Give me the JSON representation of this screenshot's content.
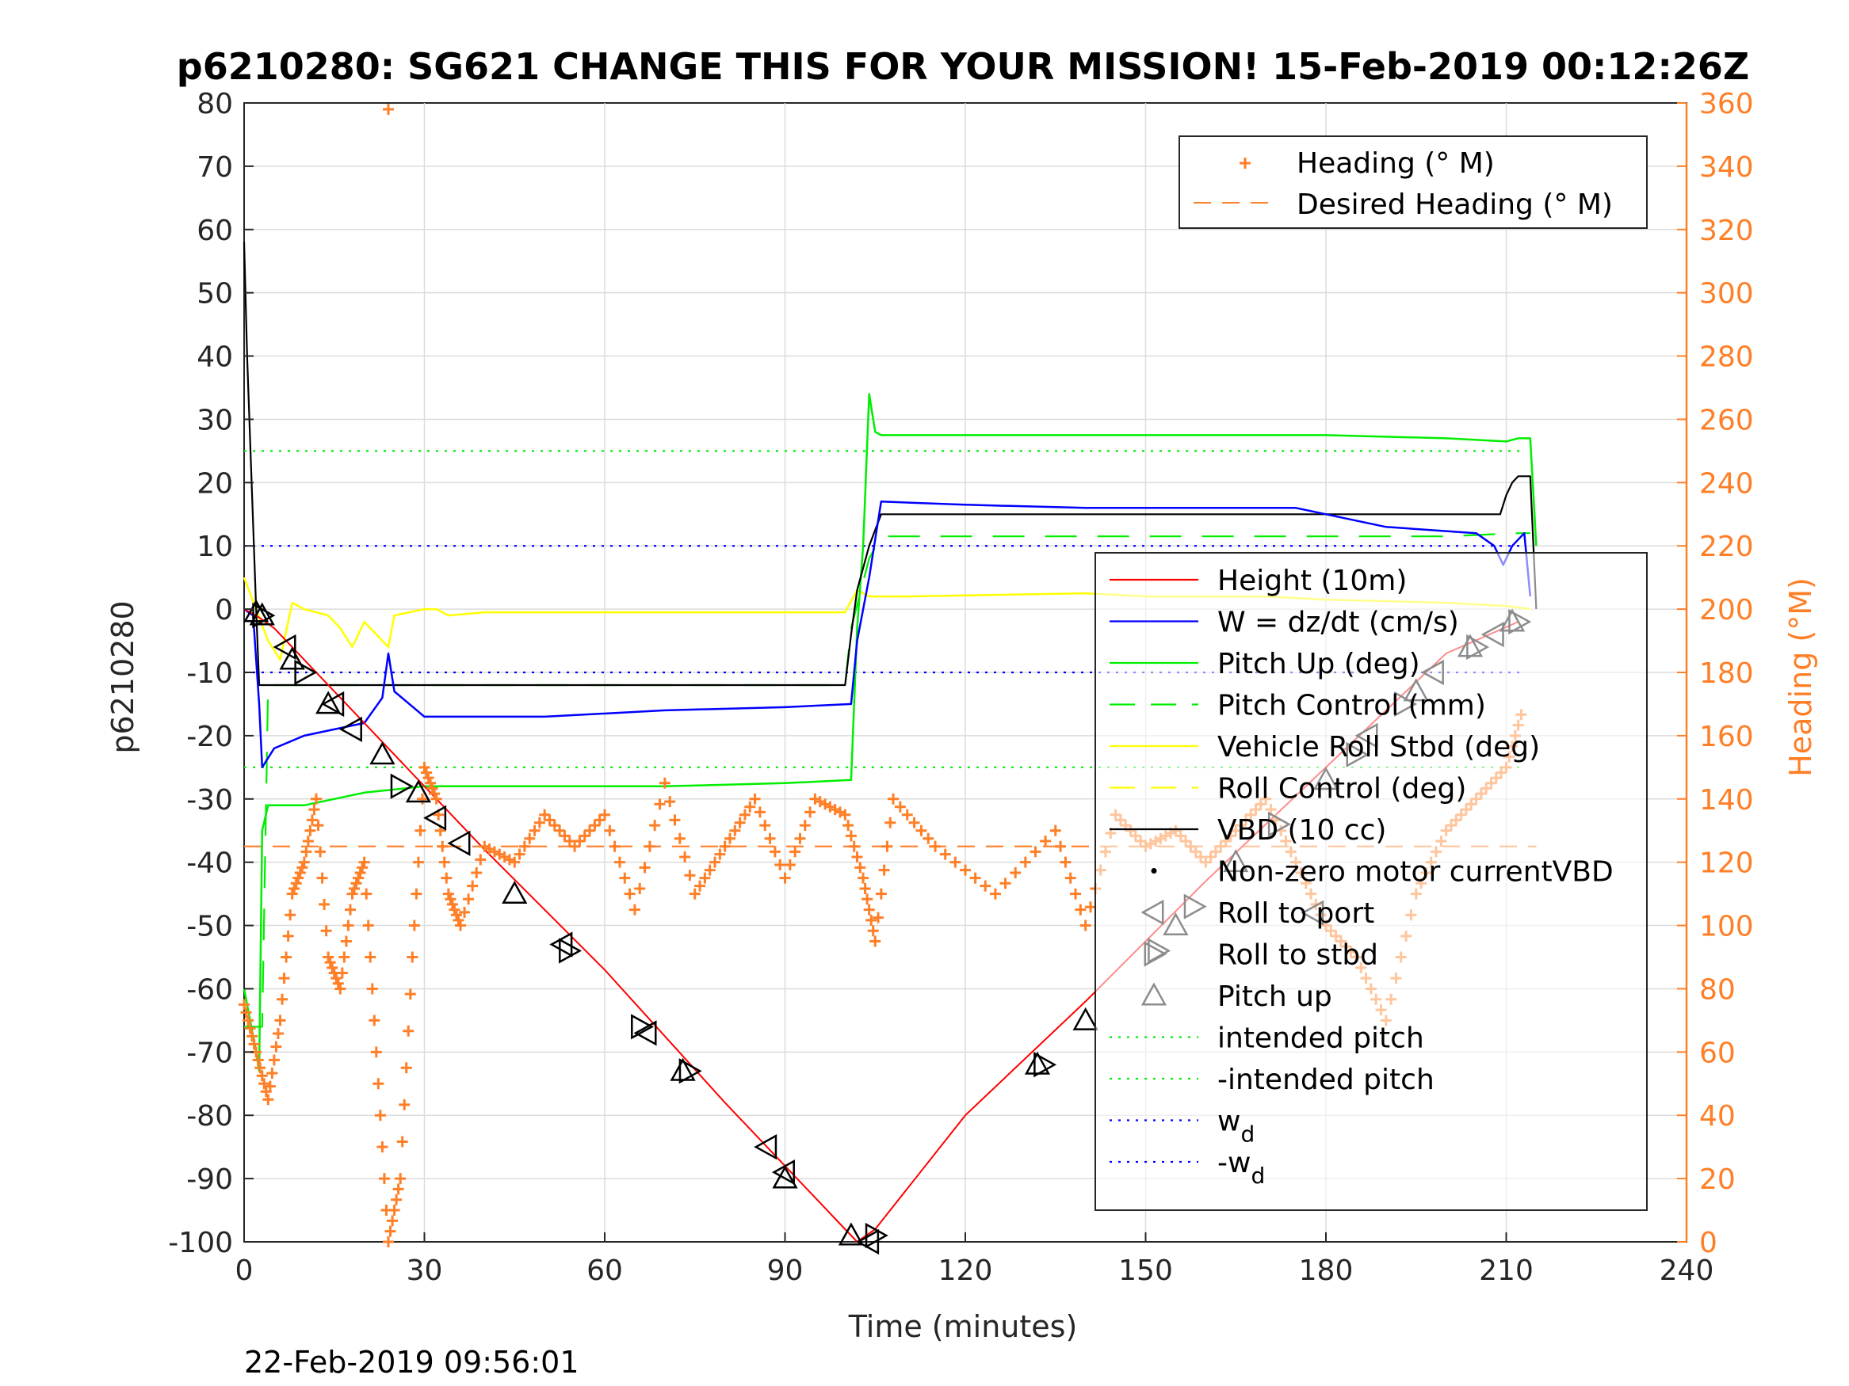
{
  "chart_data": {
    "type": "line",
    "title": "p6210280: SG621 CHANGE THIS FOR YOUR MISSION! 15-Feb-2019 00:12:26Z",
    "xlabel": "Time (minutes)",
    "ylabel": "p6210280",
    "y2label": "Heading (°M)",
    "footer": "22-Feb-2019 09:56:01",
    "xlim": [
      0,
      240
    ],
    "ylim": [
      -100,
      80
    ],
    "y2lim": [
      0,
      360
    ],
    "grid": true,
    "xticks": [
      "0",
      "30",
      "60",
      "90",
      "120",
      "150",
      "180",
      "210",
      "240"
    ],
    "yticks": [
      "80",
      "70",
      "60",
      "50",
      "40",
      "30",
      "20",
      "10",
      "0",
      "-10",
      "-20",
      "-30",
      "-40",
      "-50",
      "-60",
      "-70",
      "-80",
      "-90",
      "-100"
    ],
    "y2ticks": [
      "360",
      "340",
      "320",
      "300",
      "280",
      "260",
      "240",
      "220",
      "200",
      "180",
      "160",
      "140",
      "120",
      "100",
      "80",
      "60",
      "40",
      "20",
      "0"
    ],
    "colors": {
      "height": "#ff0000",
      "w": "#0000ff",
      "pitch": "#00ee00",
      "roll": "#ffff00",
      "vbd": "#000000",
      "heading": "#ff7f27",
      "intended": "#00ee00",
      "wd": "#0000ff"
    },
    "legend_right": {
      "placement": "top-right",
      "entries": [
        "Heading (° M)",
        "Desired Heading (° M)"
      ]
    },
    "legend_left": {
      "placement": "center-right",
      "entries": [
        "Height (10m)",
        "W = dz/dt (cm/s)",
        "Pitch Up (deg)",
        "Pitch Control (mm)",
        "Vehicle Roll Stbd (deg)",
        "Roll Control (deg)",
        "VBD (10 cc)",
        "Non-zero motor currentVBD",
        "Roll to port",
        "Roll to stbd",
        "Pitch up",
        "intended pitch",
        "-intended pitch"
      ],
      "wd_label": "w",
      "wd_sub": "d",
      "neg_wd_label": "-w",
      "neg_wd_sub": "d"
    },
    "series": [
      {
        "key": "height",
        "x": [
          0,
          2,
          5,
          20,
          40,
          60,
          80,
          100,
          102,
          105,
          120,
          140,
          160,
          180,
          200,
          212
        ],
        "y": [
          0,
          -1,
          -3,
          -18,
          -38,
          -57,
          -78,
          -98,
          -100,
          -98,
          -80,
          -62,
          -43,
          -25,
          -7,
          -2
        ]
      },
      {
        "key": "w",
        "x": [
          0,
          1.5,
          2.5,
          3,
          5,
          10,
          20,
          23,
          24,
          25,
          30,
          50,
          70,
          90,
          101,
          102,
          104,
          106,
          120,
          140,
          160,
          175,
          180,
          190,
          205,
          208,
          209.5,
          211,
          213,
          214
        ],
        "y": [
          0,
          -1,
          -15,
          -25,
          -22,
          -20,
          -18,
          -14,
          -7,
          -13,
          -17,
          -17,
          -16,
          -15.5,
          -15,
          -5,
          5,
          17,
          16.5,
          16,
          16,
          16,
          15,
          13,
          12,
          10,
          7,
          10,
          12,
          2
        ]
      },
      {
        "key": "pitch_up",
        "x": [
          0,
          2,
          2.5,
          3,
          4,
          10,
          20,
          30,
          50,
          70,
          90,
          101,
          102,
          103,
          104,
          105,
          106,
          120,
          150,
          180,
          200,
          210,
          212,
          214,
          215
        ],
        "y": [
          -60,
          -70,
          -73,
          -35,
          -31,
          -31,
          -29,
          -28,
          -28,
          -28,
          -27.5,
          -27,
          -3,
          10,
          34,
          28,
          27.5,
          27.5,
          27.5,
          27.5,
          27,
          26.5,
          27,
          27,
          10
        ]
      },
      {
        "key": "pitch_ctrl",
        "x": [
          0,
          3,
          4,
          100,
          101,
          104,
          106,
          200,
          212,
          214
        ],
        "y": [
          -66,
          -66,
          -12,
          -12,
          -3,
          8,
          11.5,
          11.5,
          12,
          12
        ]
      },
      {
        "key": "roll",
        "x": [
          0,
          2,
          4,
          6,
          8,
          10,
          14,
          16,
          18,
          20,
          24,
          25,
          30,
          32,
          34,
          40,
          60,
          80,
          100,
          102,
          104,
          110,
          140,
          150,
          170,
          180,
          200,
          210,
          214
        ],
        "y": [
          5,
          0,
          -5,
          -8,
          1,
          0,
          -1,
          -3,
          -6,
          -2,
          -6,
          -1,
          0,
          0,
          -1,
          -0.5,
          -0.5,
          -0.5,
          -0.5,
          3,
          2,
          2,
          2.5,
          2,
          2,
          1.5,
          1,
          0.5,
          0
        ]
      },
      {
        "key": "vbd",
        "x": [
          0,
          0.5,
          2,
          2.5,
          3,
          20,
          100,
          101,
          102,
          104,
          106,
          120,
          150,
          190,
          209,
          210,
          211,
          212,
          213,
          214,
          215
        ],
        "y": [
          58,
          40,
          0,
          -12,
          -12,
          -12,
          -12,
          -4,
          3,
          10,
          15,
          15,
          15,
          15,
          15,
          18,
          20,
          21,
          21,
          21,
          0
        ]
      },
      {
        "key": "heading",
        "x": [
          0,
          2,
          4,
          6,
          8,
          10,
          12,
          14,
          16,
          18,
          20,
          22,
          24,
          26,
          28,
          30,
          32,
          34,
          36,
          40,
          45,
          50,
          55,
          60,
          65,
          70,
          75,
          80,
          85,
          90,
          95,
          100,
          103,
          105,
          108,
          115,
          125,
          135,
          140,
          145,
          150,
          155,
          160,
          165,
          170,
          175,
          180,
          185,
          190,
          195,
          200,
          205,
          210,
          213
        ],
        "y": [
          75,
          60,
          45,
          70,
          110,
          120,
          140,
          90,
          80,
          110,
          120,
          60,
          0,
          20,
          90,
          150,
          140,
          110,
          100,
          125,
          120,
          135,
          125,
          135,
          105,
          145,
          110,
          125,
          140,
          115,
          140,
          135,
          115,
          95,
          140,
          125,
          110,
          130,
          100,
          135,
          125,
          130,
          120,
          130,
          140,
          120,
          100,
          90,
          70,
          110,
          130,
          140,
          150,
          170
        ]
      }
    ],
    "reference_lines": [
      {
        "key": "intended_pos",
        "y": 25
      },
      {
        "key": "intended_neg",
        "y": -25
      },
      {
        "key": "wd_pos",
        "y": 10
      },
      {
        "key": "wd_neg",
        "y": -10
      },
      {
        "key": "desired_heading",
        "y2": 125
      }
    ],
    "markers": {
      "roll_port": [
        [
          7,
          -6
        ],
        [
          15,
          -15
        ],
        [
          18,
          -19
        ],
        [
          32,
          -33
        ],
        [
          36,
          -37
        ],
        [
          53,
          -53
        ],
        [
          67,
          -67
        ],
        [
          87,
          -85
        ],
        [
          90,
          -89
        ],
        [
          104,
          -100
        ],
        [
          178,
          -48
        ],
        [
          187,
          -20
        ],
        [
          198,
          -10
        ],
        [
          208,
          -4
        ]
      ],
      "roll_stbd": [
        [
          3,
          -1
        ],
        [
          10,
          -10
        ],
        [
          26,
          -28
        ],
        [
          54,
          -54
        ],
        [
          66,
          -66
        ],
        [
          74,
          -73
        ],
        [
          105,
          -99
        ],
        [
          133,
          -72
        ],
        [
          152,
          -54
        ],
        [
          158,
          -47
        ],
        [
          172,
          -34
        ],
        [
          185,
          -23
        ],
        [
          193,
          -15
        ],
        [
          205,
          -6
        ],
        [
          212,
          -2
        ]
      ],
      "pitch_up": [
        [
          2,
          -0.5
        ],
        [
          3,
          -1
        ],
        [
          8,
          -8
        ],
        [
          14,
          -15
        ],
        [
          23,
          -23
        ],
        [
          29,
          -29
        ],
        [
          45,
          -45
        ],
        [
          73,
          -73
        ],
        [
          90,
          -90
        ],
        [
          101,
          -99
        ],
        [
          132,
          -72
        ],
        [
          140,
          -65
        ],
        [
          155,
          -50
        ],
        [
          165,
          -40
        ],
        [
          180,
          -27
        ],
        [
          195,
          -13
        ],
        [
          204,
          -6
        ],
        [
          211,
          -2
        ]
      ]
    },
    "outliers": [
      {
        "key": "heading_top",
        "x": 24,
        "y2": 358
      }
    ]
  }
}
